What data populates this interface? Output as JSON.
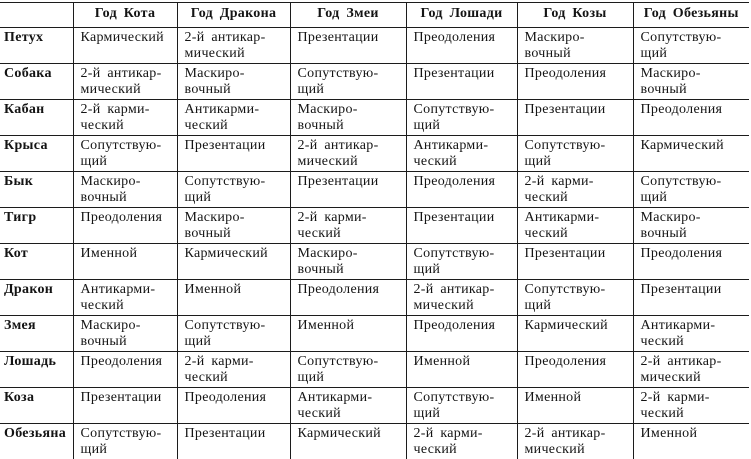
{
  "table": {
    "columns": [
      "",
      "Год Кота",
      "Год Дракона",
      "Год Змеи",
      "Год Лошади",
      "Год Козы",
      "Год Обезьяны"
    ],
    "rows": [
      {
        "label": "Петух",
        "cells": [
          "Кармический",
          "2-й антикар-\nмический",
          "Презентации",
          "Преодоления",
          "Маскиро-\nвочный",
          "Сопутствую-\nщий"
        ]
      },
      {
        "label": "Собака",
        "cells": [
          "2-й антикар-\nмический",
          "Маскиро-\nвочный",
          "Сопутствую-\nщий",
          "Презентации",
          "Преодоления",
          "Маскиро-\nвочный"
        ]
      },
      {
        "label": "Кабан",
        "cells": [
          "2-й карми-\nческий",
          "Антикарми-\nческий",
          "Маскиро-\nвочный",
          "Сопутствую-\nщий",
          "Презентации",
          "Преодоления"
        ]
      },
      {
        "label": "Крыса",
        "cells": [
          "Сопутствую-\nщий",
          "Презентации",
          "2-й антикар-\nмический",
          "Антикарми-\nческий",
          "Сопутствую-\nщий",
          "Кармический"
        ]
      },
      {
        "label": "Бык",
        "cells": [
          "Маскиро-\nвочный",
          "Сопутствую-\nщий",
          "Презентации",
          "Преодоления",
          "2-й карми-\nческий",
          "Сопутствую-\nщий"
        ]
      },
      {
        "label": "Тигр",
        "cells": [
          "Преодоления",
          "Маскиро-\nвочный",
          "2-й карми-\nческий",
          "Презентации",
          "Антикарми-\nческий",
          "Маскиро-\nвочный"
        ]
      },
      {
        "label": "Кот",
        "cells": [
          "Именной",
          "Кармический",
          "Маскиро-\nвочный",
          "Сопутствую-\nщий",
          "Презентации",
          "Преодоления"
        ]
      },
      {
        "label": "Дракон",
        "cells": [
          "Антикарми-\nческий",
          "Именной",
          "Преодоления",
          "2-й антикар-\nмический",
          "Сопутствую-\nщий",
          "Презентации"
        ]
      },
      {
        "label": "Змея",
        "cells": [
          "Маскиро-\nвочный",
          "Сопутствую-\nщий",
          "Именной",
          "Преодоления",
          "Кармический",
          "Антикарми-\nческий"
        ]
      },
      {
        "label": "Лошадь",
        "cells": [
          "Преодоления",
          "2-й карми-\nческий",
          "Сопутствую-\nщий",
          "Именной",
          "Преодоления",
          "2-й антикар-\nмический"
        ]
      },
      {
        "label": "Коза",
        "cells": [
          "Презентации",
          "Преодоления",
          "Антикарми-\nческий",
          "Сопутствую-\nщий",
          "Именной",
          "2-й карми-\nческий"
        ]
      },
      {
        "label": "Обезьяна",
        "cells": [
          "Сопутствую-\nщий",
          "Презентации",
          "Кармический",
          "2-й карми-\nческий",
          "2-й антикар-\nмический",
          "Именной"
        ]
      }
    ]
  }
}
